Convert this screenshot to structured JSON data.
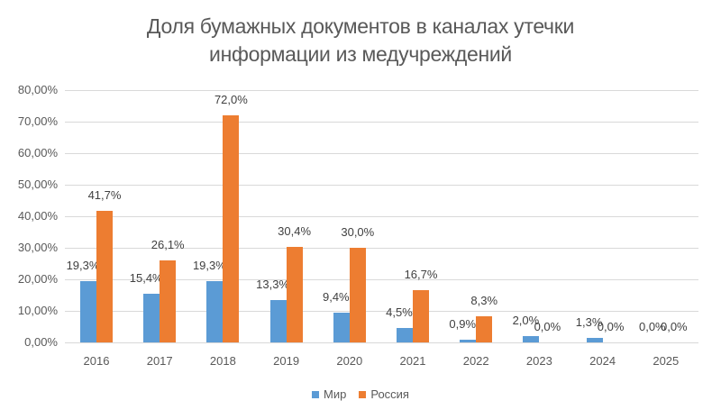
{
  "chart_data": {
    "type": "bar",
    "title": "Доля бумажных документов в каналах утечки информации из медучреждений",
    "title_lines": [
      "Доля бумажных документов в каналах утечки",
      "информации из медучреждений"
    ],
    "xlabel": "",
    "ylabel": "",
    "ylim": [
      0,
      80
    ],
    "yticks": [
      "0,00%",
      "10,00%",
      "20,00%",
      "30,00%",
      "40,00%",
      "50,00%",
      "60,00%",
      "70,00%",
      "80,00%"
    ],
    "grid": true,
    "legend_position": "bottom",
    "categories": [
      "2016",
      "2017",
      "2018",
      "2019",
      "2020",
      "2021",
      "2022",
      "2023",
      "2024",
      "2025"
    ],
    "series": [
      {
        "name": "Мир",
        "color": "#5b9bd5",
        "values": [
          19.3,
          15.4,
          19.3,
          13.3,
          9.4,
          4.5,
          0.9,
          2.0,
          1.3,
          0.0
        ],
        "labels": [
          "19,3%",
          "15,4%",
          "19,3%",
          "13,3%",
          "9,4%",
          "4,5%",
          "0,9%",
          "2,0%",
          "1,3%",
          "0,0%"
        ]
      },
      {
        "name": "Россия",
        "color": "#ed7d31",
        "values": [
          41.7,
          26.1,
          72.0,
          30.4,
          30.0,
          16.7,
          8.3,
          0.0,
          0.0,
          0.0
        ],
        "labels": [
          "41,7%",
          "26,1%",
          "72,0%",
          "30,4%",
          "30,0%",
          "16,7%",
          "8,3%",
          "0,0%",
          "0,0%",
          "0,0%"
        ]
      }
    ]
  }
}
